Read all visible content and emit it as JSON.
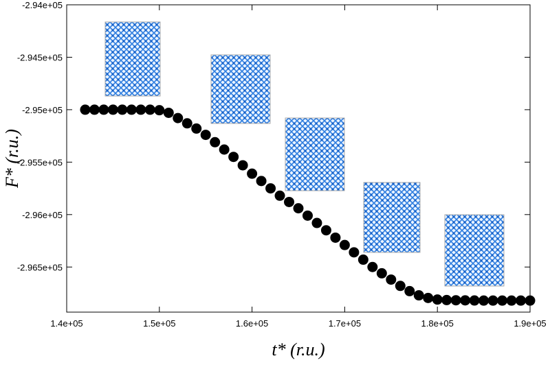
{
  "chart_data": {
    "type": "scatter",
    "xlabel": "t* (r.u.)",
    "ylabel": "F* (r.u.)",
    "xlim": [
      140000,
      190000
    ],
    "ylim": [
      -296930,
      -294000
    ],
    "xticks": [
      {
        "value": 140000,
        "label": "1.4e+05"
      },
      {
        "value": 150000,
        "label": "1.5e+05"
      },
      {
        "value": 160000,
        "label": "1.6e+05"
      },
      {
        "value": 170000,
        "label": "1.7e+05"
      },
      {
        "value": 180000,
        "label": "1.8e+05"
      },
      {
        "value": 190000,
        "label": "1.9e+05"
      }
    ],
    "yticks": [
      {
        "value": -294000,
        "label": "-2.94e+05"
      },
      {
        "value": -294500,
        "label": "-2.945e+05"
      },
      {
        "value": -295000,
        "label": "-2.95e+05"
      },
      {
        "value": -295500,
        "label": "-2.955e+05"
      },
      {
        "value": -296000,
        "label": "-2.96e+05"
      },
      {
        "value": -296500,
        "label": "-2.965e+05"
      }
    ],
    "color": "#000000",
    "x": [
      142000,
      143000,
      144000,
      145000,
      146000,
      147000,
      148000,
      149000,
      150000,
      151000,
      152000,
      153000,
      154000,
      155000,
      156000,
      157000,
      158000,
      159000,
      160000,
      161000,
      162000,
      163000,
      164000,
      165000,
      166000,
      167000,
      168000,
      169000,
      170000,
      171000,
      172000,
      173000,
      174000,
      175000,
      176000,
      177000,
      178000,
      179000,
      180000,
      181000,
      182000,
      183000,
      184000,
      185000,
      186000,
      187000,
      188000,
      189000,
      190000
    ],
    "values": [
      -295000,
      -295000,
      -295000,
      -295000,
      -295000,
      -295000,
      -295000,
      -295000,
      -295005,
      -295030,
      -295080,
      -295130,
      -295180,
      -295240,
      -295310,
      -295380,
      -295450,
      -295530,
      -295610,
      -295680,
      -295750,
      -295820,
      -295880,
      -295940,
      -296010,
      -296080,
      -296150,
      -296220,
      -296290,
      -296360,
      -296430,
      -296500,
      -296560,
      -296620,
      -296680,
      -296730,
      -296770,
      -296795,
      -296810,
      -296815,
      -296817,
      -296818,
      -296819,
      -296820,
      -296820,
      -296820,
      -296820,
      -296820,
      -296820
    ]
  }
}
